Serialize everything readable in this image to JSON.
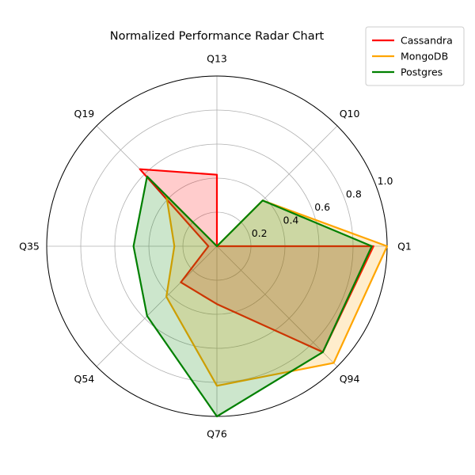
{
  "chart_data": {
    "type": "radar",
    "title": "Normalized Performance Radar Chart",
    "categories": [
      "Q1",
      "Q10",
      "Q13",
      "Q19",
      "Q35",
      "Q54",
      "Q76",
      "Q94"
    ],
    "r_ticks": [
      "0.2",
      "0.4",
      "0.6",
      "0.8",
      "1.0"
    ],
    "r_tick_values": [
      0.2,
      0.4,
      0.6,
      0.8,
      1.0
    ],
    "rlim": [
      0,
      1.0
    ],
    "grid": true,
    "legend_position": "top-right",
    "series": [
      {
        "name": "Cassandra",
        "color": "#ff0000",
        "values": [
          0.92,
          0.0,
          0.42,
          0.64,
          0.05,
          0.3,
          0.34,
          0.88
        ]
      },
      {
        "name": "MongoDB",
        "color": "#ffa500",
        "values": [
          1.0,
          0.38,
          0.0,
          0.42,
          0.25,
          0.42,
          0.82,
          0.97
        ]
      },
      {
        "name": "Postgres",
        "color": "#008000",
        "values": [
          0.91,
          0.38,
          0.0,
          0.58,
          0.49,
          0.58,
          1.0,
          0.88
        ]
      }
    ]
  }
}
